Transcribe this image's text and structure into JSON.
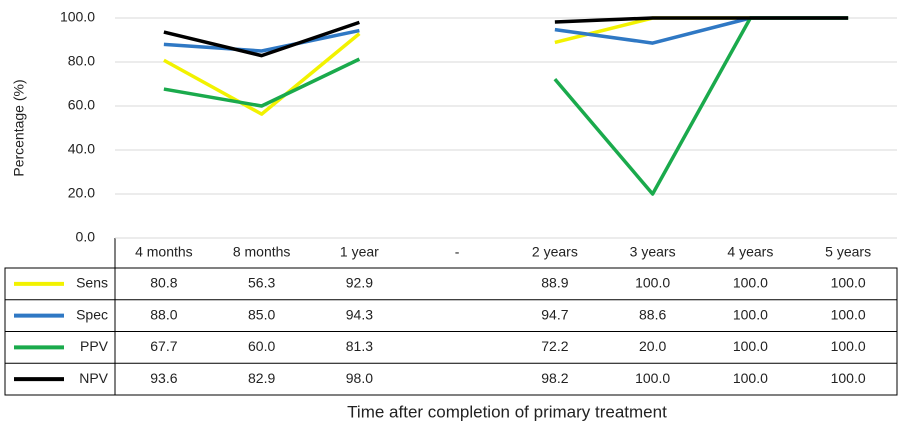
{
  "chart_data": {
    "type": "line",
    "y_label": "Percentage (%)",
    "x_label": "Time after completion of primary treatment",
    "categories": [
      "4 months",
      "8 months",
      "1 year",
      "-",
      "2 years",
      "3 years",
      "4 years",
      "5 years"
    ],
    "series": [
      {
        "name": "Sens",
        "color": "#f2f200",
        "values": [
          80.8,
          56.3,
          92.9,
          null,
          88.9,
          100,
          100,
          100
        ],
        "value_labels": [
          "80.8",
          "56.3",
          "92.9",
          null,
          "88.9",
          "100.0",
          "100.0",
          "100.0"
        ]
      },
      {
        "name": "Spec",
        "color": "#2f78c4",
        "values": [
          88.0,
          85.0,
          94.3,
          null,
          94.7,
          88.6,
          100,
          100
        ],
        "value_labels": [
          "88.0",
          "85.0",
          "94.3",
          null,
          "94.7",
          "88.6",
          "100.0",
          "100.0"
        ]
      },
      {
        "name": "PPV",
        "color": "#1aaa4c",
        "values": [
          67.7,
          60.0,
          81.3,
          null,
          72.2,
          20.0,
          100,
          100
        ],
        "value_labels": [
          "67.7",
          "60.0",
          "81.3",
          null,
          "72.2",
          "20.0",
          "100.0",
          "100.0"
        ]
      },
      {
        "name": "NPV",
        "color": "#000000",
        "values": [
          93.6,
          82.9,
          98.0,
          null,
          98.2,
          100,
          100,
          100
        ],
        "value_labels": [
          "93.6",
          "82.9",
          "98.0",
          null,
          "98.2",
          "100.0",
          "100.0",
          "100.0"
        ]
      }
    ],
    "ylim": [
      0,
      100
    ],
    "yticks": [
      {
        "value": 0,
        "label": "0.0"
      },
      {
        "value": 20,
        "label": "20.0"
      },
      {
        "value": 40,
        "label": "40.0"
      },
      {
        "value": 60,
        "label": "60.0"
      },
      {
        "value": 80,
        "label": "80.0"
      },
      {
        "value": 100,
        "label": "100.0"
      }
    ],
    "grid": true
  }
}
